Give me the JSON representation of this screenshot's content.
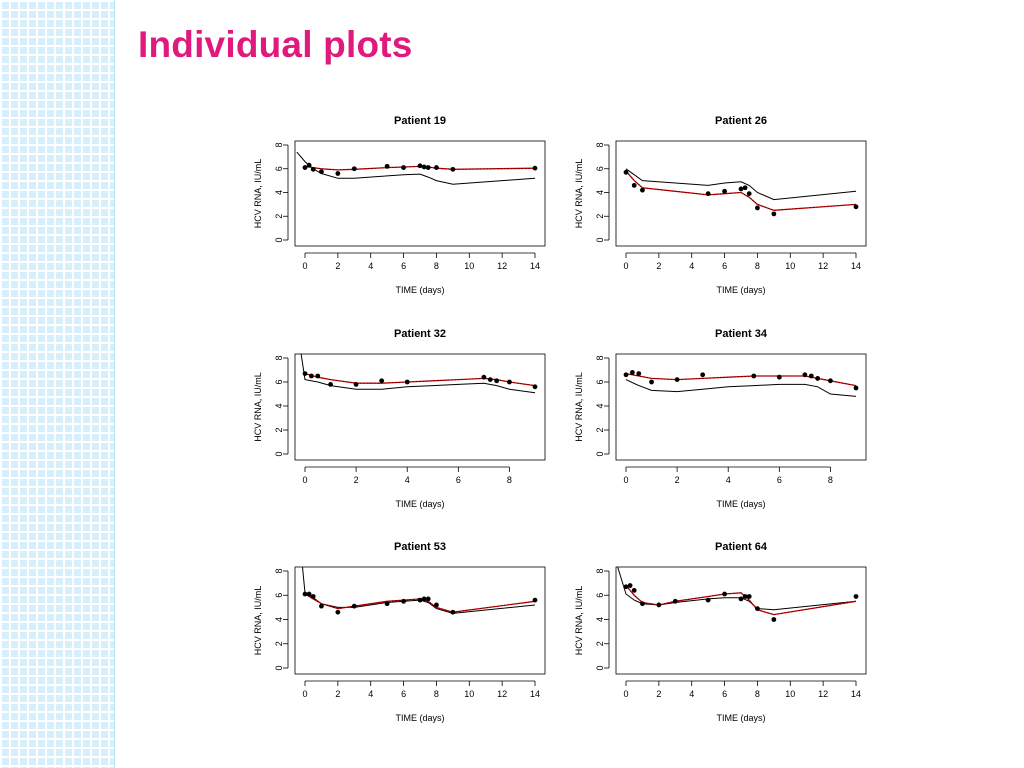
{
  "slide": {
    "title": "Individual plots",
    "title_color": "#e0197d"
  },
  "colors": {
    "observed_points": "#000000",
    "population_line": "#000000",
    "individual_line": "#d40000",
    "individual_dash": "#000000"
  },
  "chart_data": [
    {
      "type": "scatter",
      "title": "Patient  19",
      "xlabel": "TIME (days)",
      "ylabel": "HCV RNA, IU/mL",
      "xlim": [
        0,
        14
      ],
      "ylim": [
        0,
        8
      ],
      "xticks": [
        0,
        2,
        4,
        6,
        8,
        10,
        12,
        14
      ],
      "yticks": [
        0,
        2,
        4,
        6,
        8
      ],
      "series": [
        {
          "kind": "observed",
          "x": [
            0,
            0.25,
            0.5,
            1,
            2,
            3,
            5,
            6,
            7,
            7.25,
            7.5,
            8,
            9,
            14
          ],
          "y": [
            6.1,
            6.3,
            5.95,
            5.75,
            5.6,
            6.0,
            6.2,
            6.1,
            6.25,
            6.15,
            6.1,
            6.1,
            5.95,
            6.05
          ]
        },
        {
          "kind": "individual",
          "x": [
            0,
            0.5,
            1,
            2,
            3,
            5,
            6,
            7,
            7.5,
            8,
            9,
            14
          ],
          "y": [
            6.2,
            6.1,
            6.0,
            5.9,
            5.95,
            6.1,
            6.15,
            6.2,
            6.15,
            6.05,
            5.95,
            6.05
          ]
        },
        {
          "kind": "population",
          "x": [
            -0.5,
            0,
            0.5,
            1,
            2,
            3,
            5,
            6,
            7,
            7.5,
            8,
            9,
            14
          ],
          "y": [
            7.4,
            6.6,
            6.0,
            5.6,
            5.2,
            5.2,
            5.4,
            5.5,
            5.55,
            5.3,
            5.0,
            4.7,
            5.2
          ]
        }
      ]
    },
    {
      "type": "scatter",
      "title": "Patient  26",
      "xlabel": "TIME (days)",
      "ylabel": "HCV RNA, IU/mL",
      "xlim": [
        0,
        14
      ],
      "ylim": [
        0,
        8
      ],
      "xticks": [
        0,
        2,
        4,
        6,
        8,
        10,
        12,
        14
      ],
      "yticks": [
        0,
        2,
        4,
        6,
        8
      ],
      "series": [
        {
          "kind": "observed",
          "x": [
            0,
            0.5,
            1,
            5,
            6,
            7,
            7.25,
            7.5,
            8,
            9,
            14
          ],
          "y": [
            5.7,
            4.6,
            4.2,
            3.9,
            4.1,
            4.3,
            4.4,
            3.9,
            2.7,
            2.2,
            2.8
          ]
        },
        {
          "kind": "individual",
          "x": [
            0,
            0.5,
            1,
            3,
            5,
            6,
            7,
            7.5,
            8,
            9,
            14
          ],
          "y": [
            5.8,
            5.0,
            4.4,
            4.1,
            3.8,
            3.9,
            4.0,
            3.6,
            3.0,
            2.5,
            3.0
          ]
        },
        {
          "kind": "population",
          "x": [
            0,
            0.5,
            1,
            3,
            5,
            6,
            7,
            7.5,
            8,
            9,
            14
          ],
          "y": [
            6.0,
            5.5,
            5.0,
            4.8,
            4.6,
            4.8,
            4.9,
            4.6,
            4.0,
            3.4,
            4.1
          ]
        }
      ]
    },
    {
      "type": "scatter",
      "title": "Patient  32",
      "xlabel": "TIME (days)",
      "ylabel": "HCV RNA, IU/mL",
      "xlim": [
        0,
        9
      ],
      "ylim": [
        0,
        8
      ],
      "xticks": [
        0,
        2,
        4,
        6,
        8
      ],
      "yticks": [
        0,
        2,
        4,
        6,
        8
      ],
      "series": [
        {
          "kind": "observed",
          "x": [
            0,
            0.25,
            0.5,
            1,
            2,
            3,
            4,
            7,
            7.25,
            7.5,
            8,
            9
          ],
          "y": [
            6.7,
            6.5,
            6.5,
            5.8,
            5.8,
            6.1,
            6.0,
            6.4,
            6.2,
            6.1,
            6.0,
            5.6
          ]
        },
        {
          "kind": "individual",
          "x": [
            0,
            0.5,
            1,
            2,
            3,
            4,
            5,
            6,
            7,
            7.5,
            8,
            9
          ],
          "y": [
            6.7,
            6.4,
            6.2,
            5.9,
            5.9,
            6.0,
            6.1,
            6.2,
            6.3,
            6.2,
            6.0,
            5.7
          ]
        },
        {
          "kind": "population",
          "x": [
            -0.2,
            0,
            0.5,
            1,
            2,
            3,
            4,
            5,
            6,
            7,
            7.5,
            8,
            9
          ],
          "y": [
            9.0,
            6.2,
            6.0,
            5.7,
            5.4,
            5.4,
            5.6,
            5.7,
            5.8,
            5.9,
            5.7,
            5.4,
            5.1
          ]
        }
      ]
    },
    {
      "type": "scatter",
      "title": "Patient  34",
      "xlabel": "TIME (days)",
      "ylabel": "HCV RNA, IU/mL",
      "xlim": [
        0,
        9
      ],
      "ylim": [
        0,
        8
      ],
      "xticks": [
        0,
        2,
        4,
        6,
        8
      ],
      "yticks": [
        0,
        2,
        4,
        6,
        8
      ],
      "series": [
        {
          "kind": "observed",
          "x": [
            0,
            0.25,
            0.5,
            1,
            2,
            3,
            5,
            6,
            7,
            7.25,
            7.5,
            8,
            9
          ],
          "y": [
            6.6,
            6.8,
            6.7,
            6.0,
            6.2,
            6.6,
            6.5,
            6.4,
            6.6,
            6.5,
            6.3,
            6.1,
            5.5
          ]
        },
        {
          "kind": "individual",
          "x": [
            0,
            0.5,
            1,
            2,
            3,
            4,
            5,
            6,
            7,
            7.5,
            8,
            9
          ],
          "y": [
            6.7,
            6.5,
            6.3,
            6.2,
            6.3,
            6.4,
            6.5,
            6.5,
            6.5,
            6.3,
            6.1,
            5.7
          ]
        },
        {
          "kind": "population",
          "x": [
            0,
            0.5,
            1,
            2,
            3,
            4,
            5,
            6,
            7,
            7.5,
            8,
            9
          ],
          "y": [
            6.2,
            5.7,
            5.3,
            5.2,
            5.4,
            5.6,
            5.7,
            5.8,
            5.8,
            5.6,
            5.0,
            4.8
          ]
        }
      ]
    },
    {
      "type": "scatter",
      "title": "Patient  53",
      "xlabel": "TIME (days)",
      "ylabel": "HCV RNA, IU/mL",
      "xlim": [
        0,
        14
      ],
      "ylim": [
        0,
        8
      ],
      "xticks": [
        0,
        2,
        4,
        6,
        8,
        10,
        12,
        14
      ],
      "yticks": [
        0,
        2,
        4,
        6,
        8
      ],
      "series": [
        {
          "kind": "observed",
          "x": [
            0,
            0.25,
            0.5,
            1,
            2,
            3,
            5,
            6,
            7,
            7.25,
            7.5,
            8,
            9,
            14
          ],
          "y": [
            6.1,
            6.1,
            5.9,
            5.1,
            4.6,
            5.1,
            5.3,
            5.5,
            5.6,
            5.7,
            5.7,
            5.2,
            4.6,
            5.6
          ]
        },
        {
          "kind": "individual",
          "x": [
            0,
            0.5,
            1,
            2,
            3,
            5,
            6,
            7,
            7.5,
            8,
            9,
            14
          ],
          "y": [
            6.1,
            5.7,
            5.3,
            4.9,
            5.1,
            5.5,
            5.6,
            5.7,
            5.5,
            5.0,
            4.6,
            5.5
          ]
        },
        {
          "kind": "population",
          "x": [
            -0.2,
            0,
            0.5,
            1,
            2,
            3,
            5,
            6,
            7,
            7.5,
            8,
            9,
            14
          ],
          "y": [
            9.0,
            6.2,
            5.8,
            5.3,
            5.0,
            5.0,
            5.4,
            5.5,
            5.6,
            5.4,
            4.9,
            4.5,
            5.2
          ]
        }
      ]
    },
    {
      "type": "scatter",
      "title": "Patient  64",
      "xlabel": "TIME (days)",
      "ylabel": "HCV RNA, IU/mL",
      "xlim": [
        0,
        14
      ],
      "ylim": [
        0,
        8
      ],
      "xticks": [
        0,
        2,
        4,
        6,
        8,
        10,
        12,
        14
      ],
      "yticks": [
        0,
        2,
        4,
        6,
        8
      ],
      "series": [
        {
          "kind": "observed",
          "x": [
            0,
            0.25,
            0.5,
            1,
            2,
            3,
            5,
            6,
            7,
            7.25,
            7.5,
            8,
            9,
            14
          ],
          "y": [
            6.7,
            6.8,
            6.4,
            5.3,
            5.2,
            5.5,
            5.6,
            6.1,
            5.7,
            5.9,
            5.9,
            4.9,
            4.0,
            5.9
          ]
        },
        {
          "kind": "individual",
          "x": [
            0,
            0.5,
            1,
            2,
            3,
            5,
            6,
            7,
            7.5,
            8,
            9,
            14
          ],
          "y": [
            6.8,
            6.0,
            5.4,
            5.2,
            5.5,
            5.9,
            6.1,
            6.2,
            5.6,
            4.8,
            4.4,
            5.5
          ]
        },
        {
          "kind": "population",
          "x": [
            -0.5,
            0,
            0.5,
            1,
            2,
            3,
            5,
            6,
            7,
            7.5,
            8,
            9,
            14
          ],
          "y": [
            8.3,
            6.1,
            5.6,
            5.3,
            5.2,
            5.4,
            5.7,
            5.8,
            5.8,
            5.5,
            4.9,
            4.8,
            5.5
          ]
        }
      ]
    }
  ]
}
